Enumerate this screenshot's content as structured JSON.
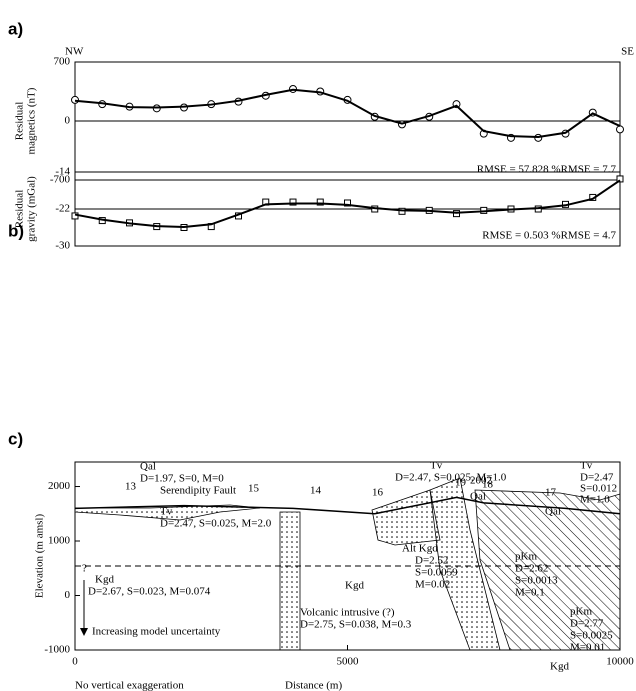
{
  "chart_data": [
    {
      "type": "profile",
      "label": "a)",
      "left_label": "NW",
      "right_label": "SE",
      "ylabel": [
        "Residual",
        "magnetics (nT)"
      ],
      "x": [
        0,
        500,
        1000,
        1500,
        2000,
        2500,
        3000,
        3500,
        4000,
        4500,
        5000,
        5500,
        6000,
        6500,
        7000,
        7500,
        8000,
        8500,
        9000,
        9500,
        10000
      ],
      "series": [
        {
          "marker": "circle",
          "color": "#000000",
          "values": [
            250,
            200,
            170,
            150,
            160,
            200,
            230,
            300,
            380,
            350,
            250,
            50,
            -40,
            50,
            200,
            -150,
            -200,
            -200,
            -150,
            100,
            -100
          ]
        },
        {
          "marker": "none",
          "color": "#000000",
          "values": [
            240,
            210,
            165,
            160,
            170,
            195,
            240,
            310,
            370,
            340,
            240,
            60,
            -30,
            60,
            180,
            -120,
            -180,
            -190,
            -140,
            90,
            -60
          ]
        }
      ],
      "xlim": [
        0,
        10000
      ],
      "ylim": [
        -700,
        700
      ],
      "yticks": [
        -700,
        0,
        700
      ],
      "baseline": 0,
      "annotation": "RMSE = 57.828   %RMSE = 7.7"
    },
    {
      "type": "profile",
      "label": "b)",
      "ylabel": [
        "Residual",
        "gravity (mGal)"
      ],
      "x": [
        0,
        500,
        1000,
        1500,
        2000,
        2500,
        3000,
        3500,
        4000,
        4500,
        5000,
        5500,
        6000,
        6500,
        7000,
        7500,
        8000,
        8500,
        9000,
        9500,
        10000
      ],
      "series": [
        {
          "marker": "square",
          "color": "#000000",
          "values": [
            -23.5,
            -24.5,
            -25,
            -25.8,
            -26,
            -25.8,
            -23.5,
            -20.5,
            -20.5,
            -20.5,
            -20.7,
            -22,
            -22.5,
            -22.3,
            -23,
            -22.3,
            -22,
            -22,
            -21,
            -19.5,
            -15.5
          ]
        },
        {
          "marker": "none",
          "color": "#000000",
          "values": [
            -23.2,
            -24.3,
            -25.1,
            -25.7,
            -25.9,
            -25.3,
            -23.2,
            -21,
            -20.8,
            -20.8,
            -21.1,
            -21.8,
            -22.3,
            -22.4,
            -22.8,
            -22.5,
            -22.1,
            -21.8,
            -21.2,
            -19.8,
            -15.8
          ]
        }
      ],
      "xlim": [
        0,
        10000
      ],
      "ylim": [
        -30,
        -14
      ],
      "yticks": [
        -30,
        -22,
        -14
      ],
      "baseline": -22,
      "annotation": "RMSE = 0.503   %RMSE = 4.7"
    },
    {
      "type": "section",
      "label": "c)",
      "ylabel": [
        "Elevation (m amsl)"
      ],
      "xlabel": "Distance (m)",
      "note": "No vertical exaggeration",
      "surface": {
        "x": [
          0,
          2000,
          4000,
          5500,
          6500,
          7000,
          7500,
          9000,
          10000
        ],
        "values": [
          1600,
          1650,
          1600,
          1500,
          1700,
          1800,
          1700,
          1600,
          1500
        ]
      },
      "xlim": [
        0,
        10000
      ],
      "ylim": [
        -1000,
        2450
      ],
      "xticks": [
        0,
        5000,
        10000
      ],
      "yticks": [
        -1000,
        0,
        1000,
        2000
      ],
      "annotations": [
        "Qal",
        "D=1.97, S=0, M=0",
        "Serendipity Fault",
        "13",
        "15",
        "14",
        "Tv",
        "D=2.47, S=0.025, M=1.0",
        "16",
        "Qal",
        "19",
        "2002",
        "18",
        "17",
        "Tv",
        "D=2.47",
        "S=0.012",
        "M=1.0",
        "Qal",
        "Tv",
        "D=2.47, S=0.025, M=2.0",
        "Alt Kgd",
        "D=2.52",
        "S=0.0059",
        "M=0.02",
        "pKm",
        "D=2.62",
        "S=0.0013",
        "M=0.1",
        "?",
        "Kgd",
        "D=2.67, S=0.023, M=0.074",
        "Kgd",
        "Volcanic intrusive (?)",
        "D=2.75, S=0.038, M=0.3",
        "Increasing model uncertainty",
        "pKm",
        "D=2.77",
        "S=0.0025",
        "M=0.01",
        "Kgd"
      ]
    }
  ]
}
